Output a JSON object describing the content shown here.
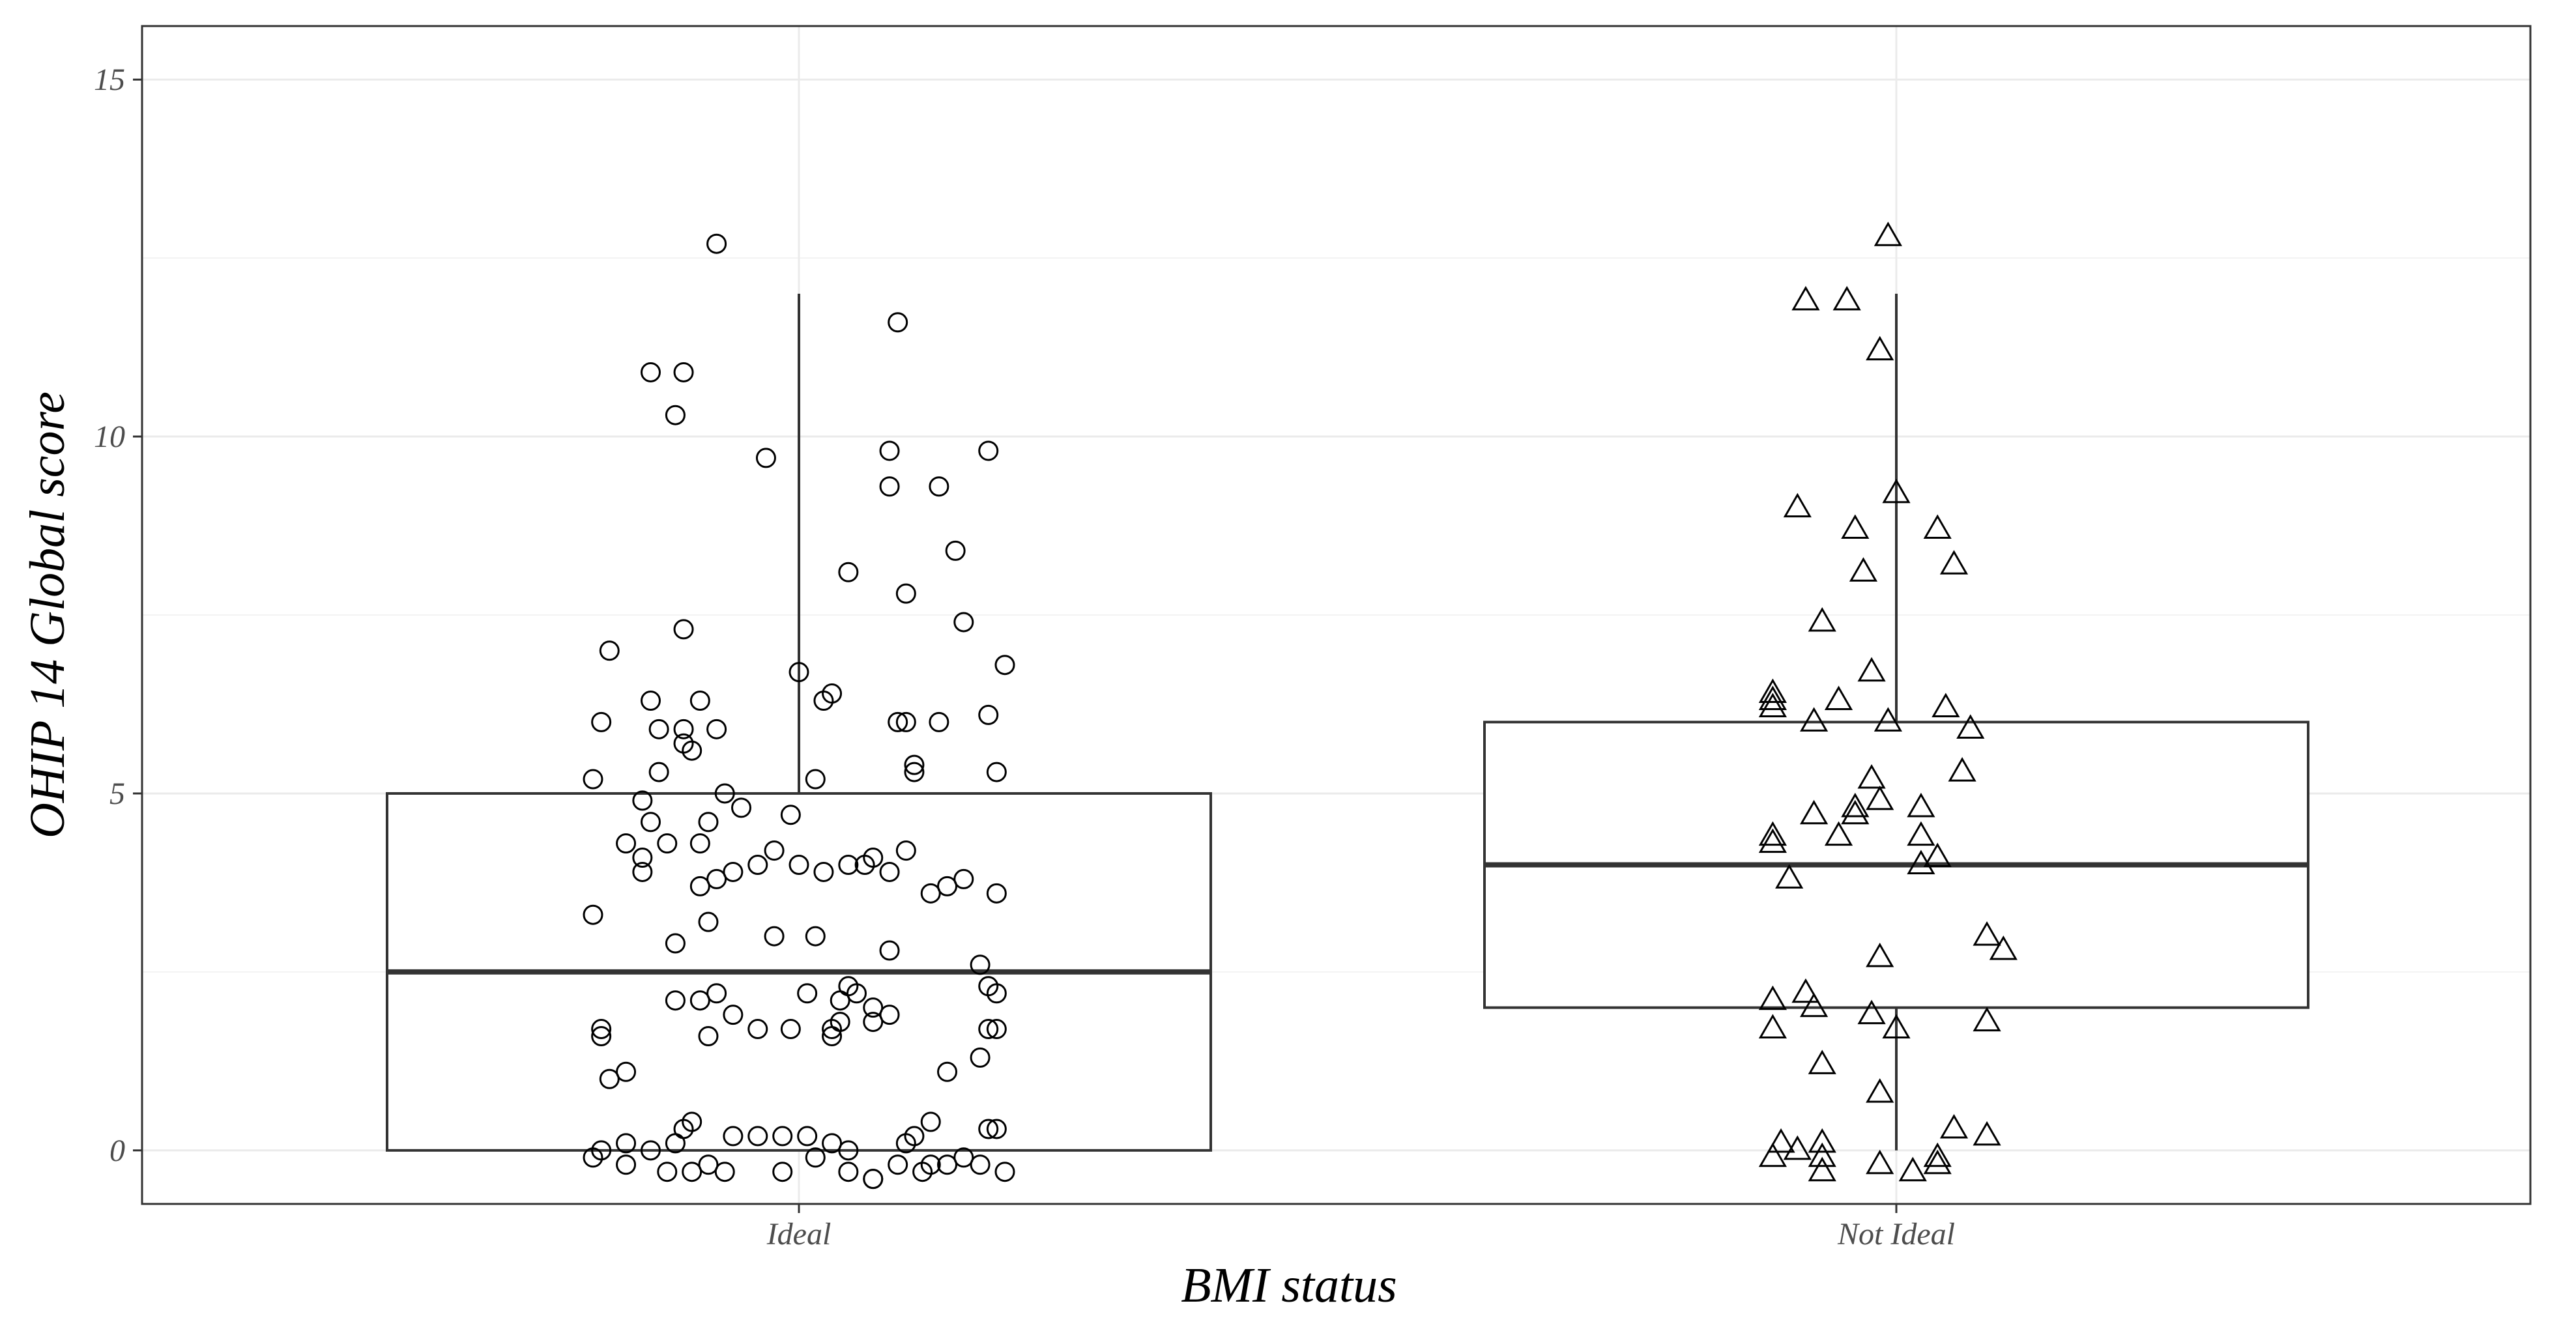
{
  "chart_data": {
    "type": "boxplot",
    "xlabel": "BMI status",
    "ylabel": "OHIP 14 Global score",
    "categories": [
      "Ideal",
      "Not Ideal"
    ],
    "y_ticks": [
      0,
      5,
      10,
      15
    ],
    "ylim": [
      -0.75,
      15.75
    ],
    "grid": true,
    "boxes": [
      {
        "category": "Ideal",
        "min": 0,
        "q1": 0,
        "median": 2.5,
        "q3": 5,
        "max": 12,
        "point_shape": "circle"
      },
      {
        "category": "Not Ideal",
        "min": 0,
        "q1": 2,
        "median": 4,
        "q3": 6,
        "max": 12,
        "point_shape": "triangle"
      }
    ],
    "points": {
      "Ideal": [
        {
          "jx": -0.1,
          "y": 12.7
        },
        {
          "jx": 0.12,
          "y": 11.6
        },
        {
          "jx": -0.18,
          "y": 10.9
        },
        {
          "jx": -0.14,
          "y": 10.9
        },
        {
          "jx": -0.15,
          "y": 10.3
        },
        {
          "jx": -0.04,
          "y": 9.7
        },
        {
          "jx": 0.11,
          "y": 9.8
        },
        {
          "jx": 0.23,
          "y": 9.8
        },
        {
          "jx": 0.11,
          "y": 9.3
        },
        {
          "jx": 0.17,
          "y": 9.3
        },
        {
          "jx": 0.19,
          "y": 8.4
        },
        {
          "jx": 0.06,
          "y": 8.1
        },
        {
          "jx": 0.13,
          "y": 7.8
        },
        {
          "jx": -0.14,
          "y": 7.3
        },
        {
          "jx": 0.2,
          "y": 7.4
        },
        {
          "jx": -0.23,
          "y": 7.0
        },
        {
          "jx": 0.25,
          "y": 6.8
        },
        {
          "jx": 0.0,
          "y": 6.7
        },
        {
          "jx": 0.04,
          "y": 6.4
        },
        {
          "jx": 0.03,
          "y": 6.3
        },
        {
          "jx": -0.18,
          "y": 6.3
        },
        {
          "jx": -0.12,
          "y": 6.3
        },
        {
          "jx": -0.24,
          "y": 6.0
        },
        {
          "jx": -0.14,
          "y": 5.9
        },
        {
          "jx": -0.1,
          "y": 5.9
        },
        {
          "jx": 0.12,
          "y": 6.0
        },
        {
          "jx": 0.13,
          "y": 6.0
        },
        {
          "jx": 0.17,
          "y": 6.0
        },
        {
          "jx": 0.23,
          "y": 6.1
        },
        {
          "jx": -0.17,
          "y": 5.9
        },
        {
          "jx": -0.14,
          "y": 5.7
        },
        {
          "jx": -0.13,
          "y": 5.6
        },
        {
          "jx": -0.17,
          "y": 5.3
        },
        {
          "jx": 0.14,
          "y": 5.4
        },
        {
          "jx": 0.14,
          "y": 5.3
        },
        {
          "jx": 0.24,
          "y": 5.3
        },
        {
          "jx": -0.25,
          "y": 5.2
        },
        {
          "jx": 0.02,
          "y": 5.2
        },
        {
          "jx": -0.09,
          "y": 5.0
        },
        {
          "jx": -0.19,
          "y": 4.9
        },
        {
          "jx": -0.07,
          "y": 4.8
        },
        {
          "jx": -0.01,
          "y": 4.7
        },
        {
          "jx": -0.18,
          "y": 4.6
        },
        {
          "jx": -0.11,
          "y": 4.6
        },
        {
          "jx": -0.21,
          "y": 4.3
        },
        {
          "jx": -0.16,
          "y": 4.3
        },
        {
          "jx": -0.12,
          "y": 4.3
        },
        {
          "jx": -0.19,
          "y": 4.1
        },
        {
          "jx": -0.03,
          "y": 4.2
        },
        {
          "jx": 0.08,
          "y": 4.0
        },
        {
          "jx": 0.03,
          "y": 3.9
        },
        {
          "jx": 0.0,
          "y": 4.0
        },
        {
          "jx": 0.06,
          "y": 4.0
        },
        {
          "jx": 0.09,
          "y": 4.1
        },
        {
          "jx": 0.11,
          "y": 3.9
        },
        {
          "jx": 0.13,
          "y": 4.2
        },
        {
          "jx": -0.05,
          "y": 4.0
        },
        {
          "jx": -0.08,
          "y": 3.9
        },
        {
          "jx": -0.19,
          "y": 3.9
        },
        {
          "jx": -0.1,
          "y": 3.8
        },
        {
          "jx": -0.12,
          "y": 3.7
        },
        {
          "jx": 0.16,
          "y": 3.6
        },
        {
          "jx": 0.18,
          "y": 3.7
        },
        {
          "jx": 0.2,
          "y": 3.8
        },
        {
          "jx": 0.24,
          "y": 3.6
        },
        {
          "jx": -0.25,
          "y": 3.3
        },
        {
          "jx": -0.11,
          "y": 3.2
        },
        {
          "jx": -0.15,
          "y": 2.9
        },
        {
          "jx": -0.03,
          "y": 3.0
        },
        {
          "jx": 0.02,
          "y": 3.0
        },
        {
          "jx": 0.11,
          "y": 2.8
        },
        {
          "jx": 0.22,
          "y": 2.6
        },
        {
          "jx": 0.23,
          "y": 2.3
        },
        {
          "jx": 0.24,
          "y": 2.2
        },
        {
          "jx": -0.1,
          "y": 2.2
        },
        {
          "jx": -0.15,
          "y": 2.1
        },
        {
          "jx": -0.12,
          "y": 2.1
        },
        {
          "jx": 0.01,
          "y": 2.2
        },
        {
          "jx": 0.05,
          "y": 2.1
        },
        {
          "jx": 0.07,
          "y": 2.2
        },
        {
          "jx": 0.06,
          "y": 2.3
        },
        {
          "jx": 0.09,
          "y": 2.0
        },
        {
          "jx": 0.11,
          "y": 1.9
        },
        {
          "jx": -0.08,
          "y": 1.9
        },
        {
          "jx": -0.24,
          "y": 1.7
        },
        {
          "jx": -0.24,
          "y": 1.6
        },
        {
          "jx": -0.11,
          "y": 1.6
        },
        {
          "jx": -0.05,
          "y": 1.7
        },
        {
          "jx": -0.01,
          "y": 1.7
        },
        {
          "jx": 0.04,
          "y": 1.7
        },
        {
          "jx": 0.04,
          "y": 1.6
        },
        {
          "jx": 0.05,
          "y": 1.8
        },
        {
          "jx": 0.09,
          "y": 1.8
        },
        {
          "jx": 0.23,
          "y": 1.7
        },
        {
          "jx": 0.24,
          "y": 1.7
        },
        {
          "jx": 0.22,
          "y": 1.3
        },
        {
          "jx": 0.18,
          "y": 1.1
        },
        {
          "jx": -0.23,
          "y": 1.0
        },
        {
          "jx": -0.21,
          "y": 1.1
        },
        {
          "jx": -0.14,
          "y": 0.3
        },
        {
          "jx": -0.13,
          "y": 0.4
        },
        {
          "jx": 0.16,
          "y": 0.4
        },
        {
          "jx": 0.23,
          "y": 0.3
        },
        {
          "jx": 0.24,
          "y": 0.3
        },
        {
          "jx": -0.08,
          "y": 0.2
        },
        {
          "jx": -0.05,
          "y": 0.2
        },
        {
          "jx": -0.02,
          "y": 0.2
        },
        {
          "jx": 0.01,
          "y": 0.2
        },
        {
          "jx": 0.14,
          "y": 0.2
        },
        {
          "jx": 0.13,
          "y": 0.1
        },
        {
          "jx": -0.21,
          "y": 0.1
        },
        {
          "jx": -0.15,
          "y": 0.1
        },
        {
          "jx": -0.18,
          "y": 0.0
        },
        {
          "jx": -0.24,
          "y": 0.0
        },
        {
          "jx": 0.04,
          "y": 0.1
        },
        {
          "jx": 0.06,
          "y": 0.0
        },
        {
          "jx": -0.25,
          "y": -0.1
        },
        {
          "jx": -0.21,
          "y": -0.2
        },
        {
          "jx": -0.16,
          "y": -0.3
        },
        {
          "jx": -0.13,
          "y": -0.3
        },
        {
          "jx": -0.11,
          "y": -0.2
        },
        {
          "jx": -0.09,
          "y": -0.3
        },
        {
          "jx": -0.02,
          "y": -0.3
        },
        {
          "jx": 0.02,
          "y": -0.1
        },
        {
          "jx": 0.06,
          "y": -0.3
        },
        {
          "jx": 0.09,
          "y": -0.4
        },
        {
          "jx": 0.09,
          "y": -0.4
        },
        {
          "jx": 0.12,
          "y": -0.2
        },
        {
          "jx": 0.15,
          "y": -0.3
        },
        {
          "jx": 0.16,
          "y": -0.2
        },
        {
          "jx": 0.18,
          "y": -0.2
        },
        {
          "jx": 0.2,
          "y": -0.1
        },
        {
          "jx": 0.22,
          "y": -0.2
        },
        {
          "jx": 0.25,
          "y": -0.3
        }
      ],
      "Not Ideal": [
        {
          "jx": -0.01,
          "y": 12.8
        },
        {
          "jx": -0.11,
          "y": 11.9
        },
        {
          "jx": -0.06,
          "y": 11.9
        },
        {
          "jx": -0.02,
          "y": 11.2
        },
        {
          "jx": -0.12,
          "y": 9.0
        },
        {
          "jx": 0.0,
          "y": 9.2
        },
        {
          "jx": -0.05,
          "y": 8.7
        },
        {
          "jx": 0.05,
          "y": 8.7
        },
        {
          "jx": -0.04,
          "y": 8.1
        },
        {
          "jx": 0.07,
          "y": 8.2
        },
        {
          "jx": -0.09,
          "y": 7.4
        },
        {
          "jx": -0.03,
          "y": 6.7
        },
        {
          "jx": -0.15,
          "y": 6.4
        },
        {
          "jx": -0.15,
          "y": 6.3
        },
        {
          "jx": -0.15,
          "y": 6.2
        },
        {
          "jx": -0.07,
          "y": 6.3
        },
        {
          "jx": 0.06,
          "y": 6.2
        },
        {
          "jx": -0.1,
          "y": 6.0
        },
        {
          "jx": -0.01,
          "y": 6.0
        },
        {
          "jx": 0.09,
          "y": 5.9
        },
        {
          "jx": -0.03,
          "y": 5.2
        },
        {
          "jx": 0.08,
          "y": 5.3
        },
        {
          "jx": -0.02,
          "y": 4.9
        },
        {
          "jx": 0.03,
          "y": 4.8
        },
        {
          "jx": -0.05,
          "y": 4.8
        },
        {
          "jx": -0.05,
          "y": 4.7
        },
        {
          "jx": -0.1,
          "y": 4.7
        },
        {
          "jx": -0.15,
          "y": 4.4
        },
        {
          "jx": -0.15,
          "y": 4.3
        },
        {
          "jx": -0.07,
          "y": 4.4
        },
        {
          "jx": 0.03,
          "y": 4.4
        },
        {
          "jx": 0.05,
          "y": 4.1
        },
        {
          "jx": 0.03,
          "y": 4.0
        },
        {
          "jx": -0.13,
          "y": 3.8
        },
        {
          "jx": 0.11,
          "y": 3.0
        },
        {
          "jx": 0.13,
          "y": 2.8
        },
        {
          "jx": -0.02,
          "y": 2.7
        },
        {
          "jx": -0.11,
          "y": 2.2
        },
        {
          "jx": -0.15,
          "y": 2.1
        },
        {
          "jx": -0.1,
          "y": 2.0
        },
        {
          "jx": -0.03,
          "y": 1.9
        },
        {
          "jx": 0.0,
          "y": 1.7
        },
        {
          "jx": -0.15,
          "y": 1.7
        },
        {
          "jx": 0.11,
          "y": 1.8
        },
        {
          "jx": -0.09,
          "y": 1.2
        },
        {
          "jx": -0.02,
          "y": 0.8
        },
        {
          "jx": 0.07,
          "y": 0.3
        },
        {
          "jx": 0.11,
          "y": 0.2
        },
        {
          "jx": -0.14,
          "y": 0.1
        },
        {
          "jx": -0.09,
          "y": 0.1
        },
        {
          "jx": -0.12,
          "y": 0.0
        },
        {
          "jx": -0.09,
          "y": -0.1
        },
        {
          "jx": -0.15,
          "y": -0.1
        },
        {
          "jx": 0.05,
          "y": -0.2
        },
        {
          "jx": 0.05,
          "y": -0.1
        },
        {
          "jx": -0.02,
          "y": -0.2
        },
        {
          "jx": 0.02,
          "y": -0.3
        },
        {
          "jx": -0.09,
          "y": -0.3
        }
      ]
    }
  }
}
